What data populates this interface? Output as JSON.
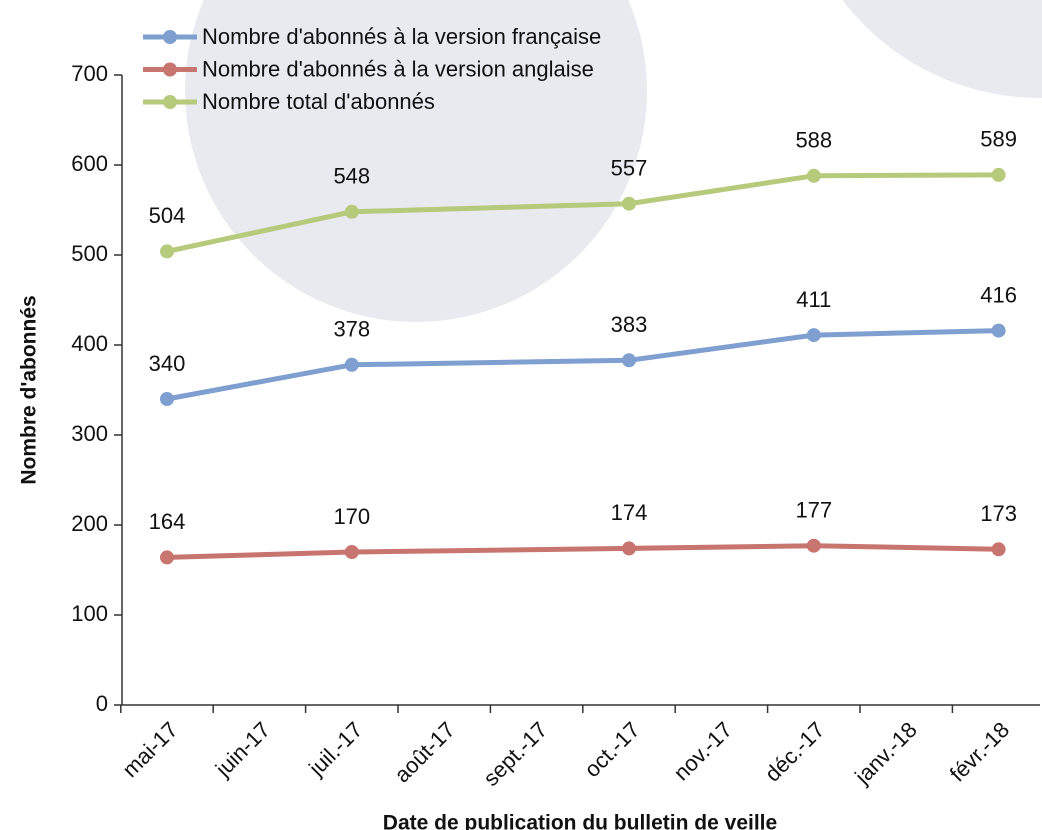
{
  "chart_data": {
    "type": "line",
    "x_label": "Date de publication du bulletin de veille",
    "y_label": "Nombre d'abonnés",
    "x": [
      "2017-05",
      "2017-07",
      "2017-10",
      "2017-12",
      "2018-02"
    ],
    "xticks": [
      {
        "value": "2017-05",
        "label": "mai-17"
      },
      {
        "value": "2017-06",
        "label": "juin-17"
      },
      {
        "value": "2017-07",
        "label": "juil.-17"
      },
      {
        "value": "2017-08",
        "label": "août-17"
      },
      {
        "value": "2017-09",
        "label": "sept.-17"
      },
      {
        "value": "2017-10",
        "label": "oct.-17"
      },
      {
        "value": "2017-11",
        "label": "nov.-17"
      },
      {
        "value": "2017-12",
        "label": "déc.-17"
      },
      {
        "value": "2018-01",
        "label": "janv.-18"
      },
      {
        "value": "2018-02",
        "label": "févr.-18"
      }
    ],
    "ylim": [
      0,
      700
    ],
    "yticks": [
      0,
      100,
      200,
      300,
      400,
      500,
      600,
      700
    ],
    "series": [
      {
        "name": "Nombre d'abonnés à la version française",
        "color": "#7f9fd0",
        "values": [
          340,
          378,
          383,
          411,
          416
        ]
      },
      {
        "name": "Nombre d'abonnés à la version anglaise",
        "color": "#c8756f",
        "values": [
          164,
          170,
          174,
          177,
          173
        ]
      },
      {
        "name": "Nombre total d'abonnés",
        "color": "#b6ca7c",
        "values": [
          504,
          548,
          557,
          588,
          589
        ]
      }
    ]
  }
}
